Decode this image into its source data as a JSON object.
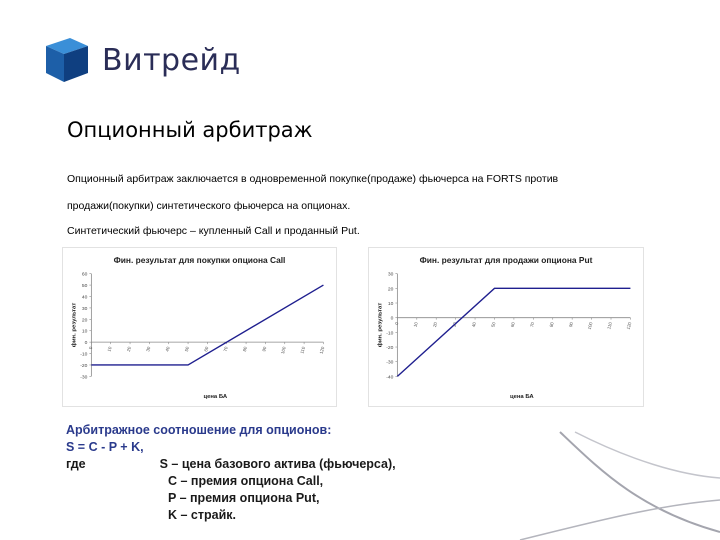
{
  "logo": {
    "text": "Витрейд",
    "color": "#2a2d57"
  },
  "title": "Опционный арбитраж",
  "paragraphs": {
    "p1_line1": "Опционный арбитраж заключается в одновременной покупке(продаже) фьючерса на FORTS против",
    "p1_line2": "продажи(покупки) синтетического фьючерса на опционах.",
    "p2": "Синтетический фьючерс – купленный Call и проданный Put."
  },
  "chart_data": [
    {
      "type": "line",
      "title": "Фин. результат для покупки опциона Call",
      "xlabel": "цена БА",
      "ylabel": "фин. результат",
      "x": [
        0,
        10,
        20,
        30,
        40,
        50,
        60,
        70,
        80,
        90,
        100,
        110,
        120
      ],
      "xticks": [
        "0",
        "10",
        "20",
        "30",
        "40",
        "50",
        "60",
        "70",
        "80",
        "90",
        "100",
        "110",
        "120"
      ],
      "yticks": [
        60,
        50,
        40,
        30,
        20,
        10,
        0,
        -10,
        -20,
        -30
      ],
      "ylim": [
        -30,
        60
      ],
      "series": [
        {
          "points": [
            [
              0,
              -20
            ],
            [
              50,
              -20
            ],
            [
              120,
              50
            ]
          ]
        }
      ],
      "line_color": "#1f1f8f",
      "grid": false
    },
    {
      "type": "line",
      "title": "Фин. результат для продажи опциона Put",
      "xlabel": "цена БА",
      "ylabel": "фин. результат",
      "x": [
        0,
        10,
        20,
        30,
        40,
        50,
        60,
        70,
        80,
        90,
        100,
        110,
        120
      ],
      "xticks": [
        "0",
        "10",
        "20",
        "30",
        "40",
        "50",
        "60",
        "70",
        "80",
        "90",
        "100",
        "110",
        "120"
      ],
      "yticks": [
        30,
        20,
        10,
        0,
        -10,
        -20,
        -30,
        -40
      ],
      "ylim": [
        -40,
        30
      ],
      "series": [
        {
          "points": [
            [
              0,
              -40
            ],
            [
              50,
              20
            ],
            [
              120,
              20
            ]
          ]
        }
      ],
      "line_color": "#1f1f8f",
      "grid": false
    }
  ],
  "formula": {
    "heading": "Арбитражное соотношение для опционов:",
    "equation": "S = C - P + K,",
    "where_label": "где",
    "lines": [
      "S – цена базового актива (фьючерса),",
      "C – премия опциона Call,",
      "P – премия опциона Put,",
      "K – страйк."
    ]
  },
  "colors": {
    "accent": "#2a3a8c",
    "logo_cube": "#1a6fc0",
    "swoosh": "#9fa0aa"
  }
}
